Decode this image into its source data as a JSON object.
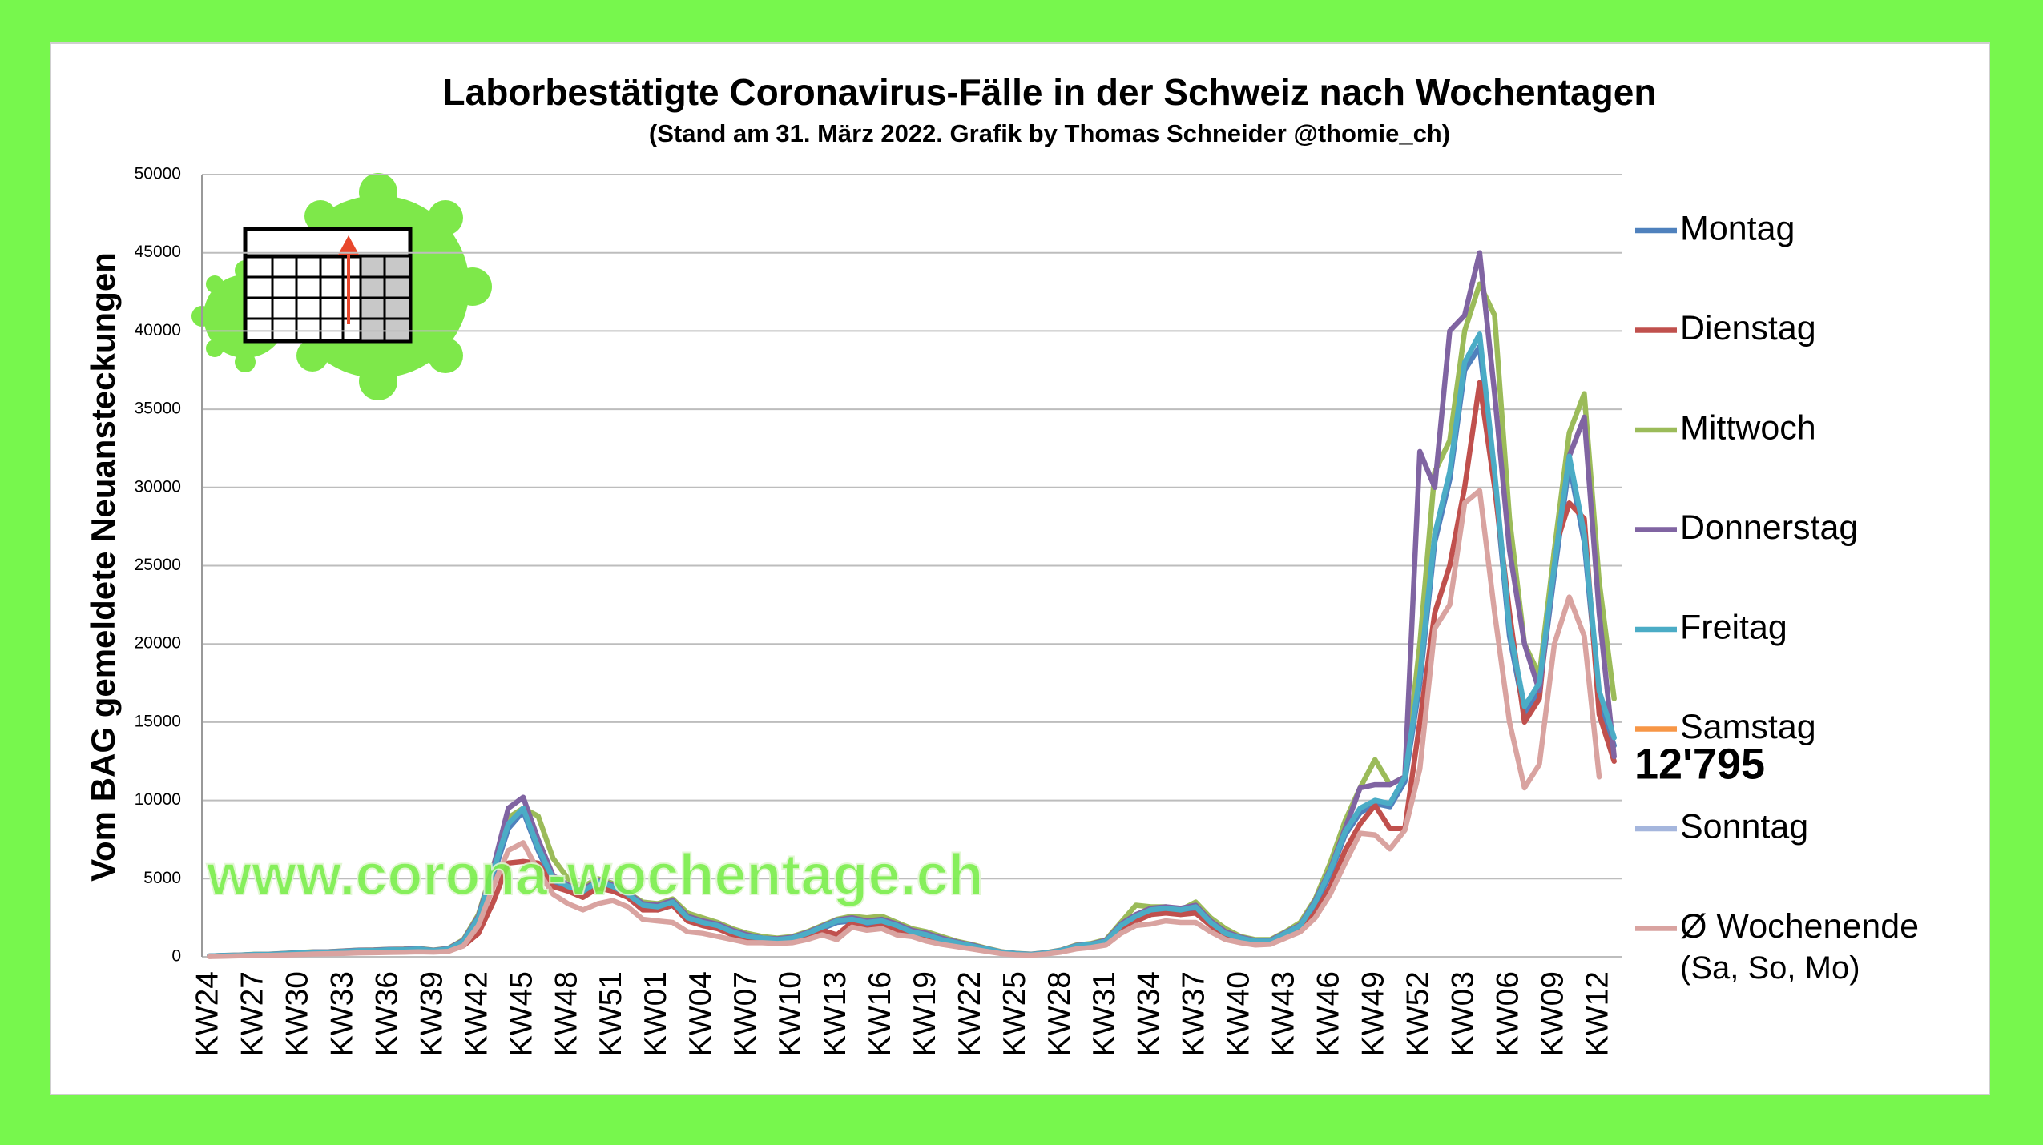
{
  "chart_data": {
    "type": "line",
    "title": "Laborbestätigte Coronavirus-Fälle in der Schweiz nach Wochentagen",
    "subtitle": "(Stand am 31. März 2022. Grafik by Thomas Schneider @thomie_ch)",
    "y_label": "Vom BAG gemeldete Neuansteckungen",
    "watermark": "www.corona-wochentage.ch",
    "annotation": "12'795",
    "ylim": [
      0,
      50000
    ],
    "yticks": [
      0,
      5000,
      10000,
      15000,
      20000,
      25000,
      30000,
      35000,
      40000,
      45000,
      50000
    ],
    "grid": true,
    "legend": "right",
    "categories": [
      "KW24",
      null,
      null,
      "KW27",
      null,
      null,
      "KW30",
      null,
      null,
      "KW33",
      null,
      null,
      "KW36",
      null,
      null,
      "KW39",
      null,
      null,
      "KW42",
      null,
      null,
      "KW45",
      null,
      null,
      "KW48",
      null,
      null,
      "KW51",
      null,
      null,
      "KW01",
      null,
      null,
      "KW04",
      null,
      null,
      "KW07",
      null,
      null,
      "KW10",
      null,
      null,
      "KW13",
      null,
      null,
      "KW16",
      null,
      null,
      "KW19",
      null,
      null,
      "KW22",
      null,
      null,
      "KW25",
      null,
      null,
      "KW28",
      null,
      null,
      "KW31",
      null,
      null,
      "KW34",
      null,
      null,
      "KW37",
      null,
      null,
      "KW40",
      null,
      null,
      "KW43",
      null,
      null,
      "KW46",
      null,
      null,
      "KW49",
      null,
      null,
      "KW52",
      null,
      null,
      "KW03",
      null,
      null,
      "KW06",
      null,
      null,
      "KW09",
      null,
      null,
      "KW12",
      null
    ],
    "series": [
      {
        "name": "Montag",
        "color": "#4f81bd",
        "values": [
          40,
          70,
          90,
          130,
          140,
          180,
          230,
          280,
          290,
          330,
          380,
          390,
          420,
          430,
          470,
          380,
          480,
          900,
          2300,
          5200,
          8200,
          9300,
          6800,
          4800,
          4300,
          4000,
          4600,
          4300,
          3800,
          3100,
          3000,
          3300,
          2400,
          2100,
          1900,
          1500,
          1200,
          1100,
          1000,
          1100,
          1400,
          1800,
          2200,
          2300,
          2100,
          2200,
          1900,
          1500,
          1300,
          1000,
          800,
          600,
          450,
          280,
          180,
          140,
          230,
          380,
          650,
          750,
          950,
          1900,
          2500,
          2900,
          3000,
          2900,
          3100,
          2100,
          1400,
          1100,
          950,
          950,
          1400,
          1900,
          3300,
          5300,
          7800,
          9200,
          9800,
          9600,
          11200,
          17500,
          26500,
          30500,
          37500,
          39000,
          30500,
          20500,
          15500,
          17000,
          24500,
          31500,
          26500,
          16500,
          13500
        ]
      },
      {
        "name": "Dienstag",
        "color": "#c0504d",
        "values": [
          30,
          60,
          80,
          110,
          120,
          150,
          200,
          230,
          250,
          280,
          320,
          330,
          360,
          370,
          400,
          330,
          400,
          700,
          1500,
          3500,
          6000,
          6100,
          6000,
          4500,
          4200,
          3800,
          4400,
          4200,
          3800,
          3000,
          3000,
          3300,
          2300,
          2000,
          1800,
          1400,
          1100,
          1000,
          900,
          1000,
          1300,
          1700,
          1400,
          2200,
          1800,
          2000,
          1700,
          1400,
          1200,
          900,
          700,
          550,
          400,
          250,
          170,
          130,
          200,
          350,
          600,
          700,
          900,
          1800,
          2300,
          2700,
          2800,
          2700,
          2800,
          2000,
          1300,
          1000,
          900,
          900,
          1300,
          1700,
          2800,
          4500,
          6800,
          8500,
          9700,
          8200,
          8200,
          15000,
          22000,
          25000,
          30000,
          36700,
          30000,
          22000,
          15000,
          16500,
          26000,
          29000,
          28000,
          15500,
          12500
        ]
      },
      {
        "name": "Mittwoch",
        "color": "#9bbb59",
        "values": [
          50,
          90,
          110,
          160,
          170,
          220,
          270,
          320,
          330,
          380,
          430,
          440,
          480,
          490,
          530,
          430,
          550,
          1100,
          2700,
          5800,
          8900,
          9500,
          9000,
          6300,
          5000,
          4500,
          5000,
          4700,
          4100,
          3500,
          3400,
          3700,
          2800,
          2500,
          2200,
          1800,
          1500,
          1300,
          1200,
          1300,
          1600,
          2000,
          2400,
          2600,
          2500,
          2600,
          2200,
          1800,
          1600,
          1300,
          1000,
          800,
          550,
          330,
          220,
          170,
          270,
          430,
          750,
          850,
          1100,
          2200,
          3300,
          3200,
          3200,
          3000,
          3500,
          2500,
          1800,
          1300,
          1100,
          1100,
          1600,
          2200,
          3700,
          6000,
          8700,
          10800,
          12600,
          11000,
          11500,
          20000,
          31000,
          33000,
          40000,
          43000,
          41000,
          28000,
          20000,
          18000,
          26000,
          33500,
          36000,
          24000,
          16500
        ]
      },
      {
        "name": "Donnerstag",
        "color": "#8064a2",
        "values": [
          50,
          90,
          110,
          150,
          160,
          210,
          260,
          310,
          320,
          370,
          420,
          430,
          470,
          480,
          520,
          420,
          530,
          1050,
          2600,
          5700,
          9500,
          10200,
          7500,
          5200,
          4600,
          4300,
          4900,
          4600,
          4100,
          3400,
          3300,
          3600,
          2600,
          2300,
          2100,
          1700,
          1400,
          1200,
          1150,
          1250,
          1550,
          1950,
          2350,
          2500,
          2300,
          2400,
          2100,
          1700,
          1500,
          1200,
          950,
          750,
          520,
          310,
          210,
          160,
          260,
          420,
          720,
          820,
          1050,
          2100,
          2700,
          3100,
          3200,
          3100,
          3300,
          2300,
          1600,
          1250,
          1050,
          1050,
          1550,
          2050,
          3600,
          5600,
          8200,
          10800,
          11000,
          11000,
          11500,
          32300,
          30000,
          40000,
          41000,
          45000,
          36000,
          26000,
          20000,
          17000,
          25000,
          32000,
          34500,
          22000,
          12795
        ]
      },
      {
        "name": "Freitag",
        "color": "#4bacc6",
        "values": [
          50,
          80,
          100,
          150,
          150,
          200,
          250,
          300,
          300,
          350,
          400,
          400,
          450,
          450,
          500,
          400,
          500,
          1000,
          2500,
          5500,
          8500,
          9500,
          7000,
          5000,
          4500,
          4200,
          4800,
          4500,
          4000,
          3300,
          3200,
          3500,
          2500,
          2200,
          2000,
          1600,
          1300,
          1200,
          1100,
          1200,
          1500,
          1900,
          2300,
          2400,
          2200,
          2300,
          2000,
          1600,
          1400,
          1100,
          900,
          700,
          500,
          300,
          200,
          150,
          250,
          400,
          700,
          800,
          1000,
          2000,
          2600,
          3000,
          3100,
          3000,
          3200,
          2200,
          1500,
          1200,
          1000,
          1000,
          1500,
          2000,
          3500,
          5500,
          8000,
          9500,
          10000,
          9800,
          11500,
          18000,
          27000,
          31000,
          38000,
          39800,
          31000,
          21000,
          16000,
          17500,
          25000,
          32000,
          27000,
          17000,
          14000
        ]
      },
      {
        "name": "Samstag",
        "color": "#f79646",
        "values": [
          null,
          null,
          null,
          null,
          null,
          null,
          null,
          null,
          null,
          null,
          null,
          null,
          null,
          null,
          null,
          null,
          null,
          null,
          null,
          null,
          null,
          null,
          null,
          null,
          null,
          null,
          null,
          null,
          null,
          null,
          null,
          null,
          null,
          null,
          null,
          null,
          null,
          null,
          null,
          null,
          null,
          null,
          null,
          null,
          null,
          null,
          null,
          null,
          null,
          null,
          null,
          null,
          null,
          null,
          null,
          null,
          null,
          null,
          null,
          null,
          null,
          null,
          null,
          null,
          null,
          null,
          null,
          null,
          null,
          null,
          null,
          null,
          null,
          null,
          null,
          null,
          null,
          null,
          null,
          null,
          null,
          null,
          null,
          null,
          null,
          null,
          null,
          null,
          null,
          null,
          null,
          null,
          null,
          null,
          null
        ]
      },
      {
        "name": "Sonntag",
        "color": "#a5b6dd",
        "values": [
          null,
          null,
          null,
          null,
          null,
          null,
          null,
          null,
          null,
          null,
          null,
          null,
          null,
          null,
          null,
          null,
          null,
          null,
          null,
          null,
          null,
          null,
          null,
          null,
          null,
          null,
          null,
          null,
          null,
          null,
          null,
          null,
          null,
          null,
          null,
          null,
          null,
          null,
          null,
          null,
          null,
          null,
          null,
          null,
          null,
          null,
          null,
          null,
          null,
          null,
          null,
          null,
          null,
          null,
          null,
          null,
          null,
          null,
          null,
          null,
          null,
          null,
          null,
          null,
          null,
          null,
          null,
          null,
          null,
          null,
          null,
          null,
          null,
          null,
          null,
          null,
          null,
          null,
          null,
          null,
          null,
          null,
          null,
          null,
          null,
          null,
          null,
          null,
          null,
          null,
          null,
          null,
          null,
          null,
          null
        ]
      },
      {
        "name": "Ø Wochenende",
        "note": "(Sa, So, Mo)",
        "color": "#d9a3a0",
        "values": [
          20,
          40,
          60,
          80,
          90,
          120,
          150,
          180,
          200,
          220,
          250,
          260,
          280,
          290,
          320,
          300,
          350,
          700,
          2000,
          4500,
          6800,
          7300,
          5500,
          4000,
          3400,
          3000,
          3400,
          3600,
          3200,
          2400,
          2300,
          2200,
          1600,
          1500,
          1300,
          1100,
          900,
          900,
          850,
          900,
          1100,
          1400,
          1100,
          1900,
          1700,
          1800,
          1400,
          1300,
          1000,
          800,
          650,
          500,
          350,
          200,
          130,
          100,
          180,
          300,
          500,
          600,
          750,
          1500,
          2000,
          2100,
          2300,
          2200,
          2200,
          1600,
          1100,
          900,
          750,
          800,
          1200,
          1600,
          2500,
          4000,
          6000,
          7900,
          7800,
          6900,
          8100,
          12000,
          21000,
          22500,
          29000,
          29800,
          22000,
          15000,
          10800,
          12300,
          20000,
          23000,
          20500,
          11500,
          null
        ]
      }
    ]
  }
}
